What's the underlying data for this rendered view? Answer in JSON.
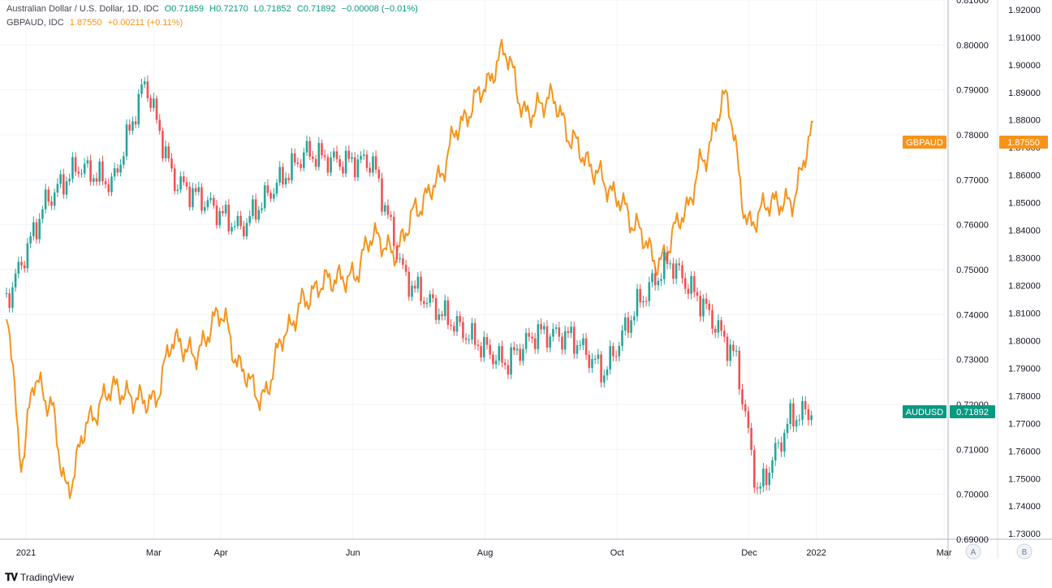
{
  "legend": {
    "primary": {
      "title": "Australian Dollar / U.S. Dollar, 1D, IDC",
      "o": "O0.71859",
      "h": "H0.72170",
      "l": "L0.71852",
      "c": "C0.71892",
      "change": "−0.00008 (−0.01%)"
    },
    "secondary": {
      "title": "GBPAUD, IDC",
      "value": "1.87550",
      "change": "+0.00211 (+0.11%)"
    }
  },
  "footer": {
    "brand": "TradingView"
  },
  "axis_buttons": {
    "a": "A",
    "b": "B"
  },
  "colors": {
    "up": "#26a69a",
    "down": "#ef5350",
    "line": "#f7931a",
    "audusd_tag": "#089981",
    "gbpaud_tag": "#f7931a",
    "grid": "#f0f3fa"
  },
  "chart_data": {
    "type": "line",
    "x_ticks": [
      "2021",
      "Mar",
      "Apr",
      "Jun",
      "Aug",
      "Oct",
      "Dec",
      "2022",
      "Mar"
    ],
    "left_axis": {
      "ticks": [
        "0.81000",
        "0.80000",
        "0.79000",
        "0.78000",
        "0.77000",
        "0.76000",
        "0.75000",
        "0.74000",
        "0.73000",
        "0.72000",
        "0.71000",
        "0.70000",
        "0.69000"
      ],
      "ylim": [
        0.69,
        0.81
      ]
    },
    "right_axis": {
      "ticks": [
        "1.92000",
        "1.91000",
        "1.90000",
        "1.89000",
        "1.88000",
        "1.87000",
        "1.86000",
        "1.85000",
        "1.84000",
        "1.83000",
        "1.82000",
        "1.81000",
        "1.80000",
        "1.79000",
        "1.78000",
        "1.77000",
        "1.76000",
        "1.75000",
        "1.74000",
        "1.73000"
      ],
      "ylim": [
        1.728,
        1.9235
      ]
    },
    "price_tags": {
      "gbpaud": {
        "label": "GBPAUD",
        "value": "1.87550"
      },
      "audusd": {
        "label": "AUDUSD",
        "value": "0.71892"
      }
    },
    "series": [
      {
        "name": "AUDUSD",
        "kind": "candlestick_close",
        "x": [
          "2020-12-23",
          "2021-01-10",
          "2021-01-25",
          "2021-02-10",
          "2021-02-25",
          "2021-03-10",
          "2021-03-25",
          "2021-04-10",
          "2021-04-25",
          "2021-05-10",
          "2021-05-25",
          "2021-06-10",
          "2021-06-25",
          "2021-07-10",
          "2021-07-25",
          "2021-08-10",
          "2021-08-25",
          "2021-09-10",
          "2021-09-25",
          "2021-10-10",
          "2021-10-25",
          "2021-11-10",
          "2021-11-25",
          "2021-12-05",
          "2021-12-20",
          "2021-12-31"
        ],
        "values": [
          0.743,
          0.765,
          0.773,
          0.769,
          0.792,
          0.77,
          0.765,
          0.759,
          0.768,
          0.776,
          0.774,
          0.774,
          0.748,
          0.741,
          0.735,
          0.729,
          0.736,
          0.735,
          0.727,
          0.742,
          0.752,
          0.742,
          0.73,
          0.7,
          0.717,
          0.7189
        ]
      },
      {
        "name": "GBPAUD",
        "kind": "line",
        "x": [
          "2020-12-23",
          "2020-12-30",
          "2021-01-05",
          "2021-01-12",
          "2021-01-20",
          "2021-01-30",
          "2021-02-10",
          "2021-02-20",
          "2021-03-01",
          "2021-03-10",
          "2021-03-20",
          "2021-04-01",
          "2021-04-10",
          "2021-04-20",
          "2021-05-01",
          "2021-05-10",
          "2021-05-20",
          "2021-06-01",
          "2021-06-10",
          "2021-06-20",
          "2021-07-01",
          "2021-07-10",
          "2021-07-20",
          "2021-08-01",
          "2021-08-10",
          "2021-08-20",
          "2021-09-01",
          "2021-09-10",
          "2021-09-20",
          "2021-10-01",
          "2021-10-10",
          "2021-10-20",
          "2021-11-01",
          "2021-11-10",
          "2021-11-20",
          "2021-12-01",
          "2021-12-10",
          "2021-12-20",
          "2021-12-31"
        ],
        "values": [
          1.81,
          1.757,
          1.786,
          1.777,
          1.746,
          1.771,
          1.783,
          1.779,
          1.778,
          1.8,
          1.795,
          1.81,
          1.79,
          1.779,
          1.803,
          1.815,
          1.822,
          1.823,
          1.838,
          1.832,
          1.848,
          1.858,
          1.878,
          1.892,
          1.905,
          1.882,
          1.888,
          1.873,
          1.862,
          1.852,
          1.841,
          1.828,
          1.846,
          1.866,
          1.888,
          1.842,
          1.85,
          1.85,
          1.876
        ]
      }
    ]
  }
}
